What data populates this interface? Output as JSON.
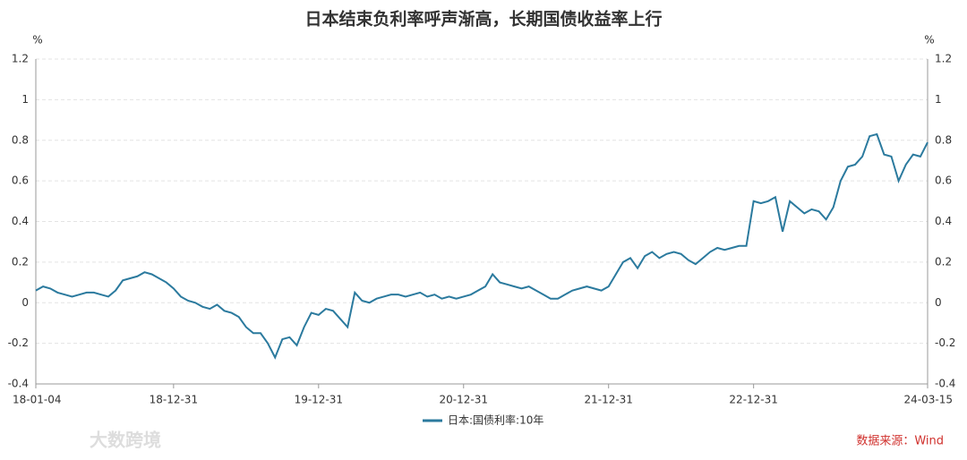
{
  "chart_data": {
    "type": "line",
    "title": "日本结束负利率呼声渐高，长期国债收益率上行",
    "y_unit": "%",
    "source": "数据来源：Wind",
    "watermark": "大数跨境",
    "categories": [
      "18-01-04",
      null,
      null,
      null,
      null,
      null,
      null,
      null,
      null,
      null,
      null,
      null,
      null,
      null,
      null,
      null,
      null,
      null,
      null,
      "18-12-31",
      null,
      null,
      null,
      null,
      null,
      null,
      null,
      null,
      null,
      null,
      null,
      null,
      null,
      null,
      null,
      null,
      null,
      null,
      null,
      "19-12-31",
      null,
      null,
      null,
      null,
      null,
      null,
      null,
      null,
      null,
      null,
      null,
      null,
      null,
      null,
      null,
      null,
      null,
      null,
      null,
      "20-12-31",
      null,
      null,
      null,
      null,
      null,
      null,
      null,
      null,
      null,
      null,
      null,
      null,
      null,
      null,
      null,
      null,
      null,
      null,
      null,
      "21-12-31",
      null,
      null,
      null,
      null,
      null,
      null,
      null,
      null,
      null,
      null,
      null,
      null,
      null,
      null,
      null,
      null,
      null,
      null,
      null,
      "22-12-31",
      null,
      null,
      null,
      null,
      null,
      null,
      null,
      null,
      null,
      null,
      null,
      null,
      null,
      null,
      null,
      null,
      null,
      null,
      null,
      null,
      null,
      null,
      null,
      "24-03-15"
    ],
    "series": [
      {
        "name": "日本:国债利率:10年",
        "color": "#2b7a9e",
        "values": [
          0.06,
          0.08,
          0.07,
          0.05,
          0.04,
          0.03,
          0.04,
          0.05,
          0.05,
          0.04,
          0.03,
          0.06,
          0.11,
          0.12,
          0.13,
          0.15,
          0.14,
          0.12,
          0.1,
          0.07,
          0.03,
          0.01,
          0.0,
          -0.02,
          -0.03,
          -0.01,
          -0.04,
          -0.05,
          -0.07,
          -0.12,
          -0.15,
          -0.15,
          -0.2,
          -0.27,
          -0.18,
          -0.17,
          -0.21,
          -0.12,
          -0.05,
          -0.06,
          -0.03,
          -0.04,
          -0.08,
          -0.12,
          0.05,
          0.01,
          0.0,
          0.02,
          0.03,
          0.04,
          0.04,
          0.03,
          0.04,
          0.05,
          0.03,
          0.04,
          0.02,
          0.03,
          0.02,
          0.03,
          0.04,
          0.06,
          0.08,
          0.14,
          0.1,
          0.09,
          0.08,
          0.07,
          0.08,
          0.06,
          0.04,
          0.02,
          0.02,
          0.04,
          0.06,
          0.07,
          0.08,
          0.07,
          0.06,
          0.08,
          0.14,
          0.2,
          0.22,
          0.17,
          0.23,
          0.25,
          0.22,
          0.24,
          0.25,
          0.24,
          0.21,
          0.19,
          0.22,
          0.25,
          0.27,
          0.26,
          0.27,
          0.28,
          0.28,
          0.5,
          0.49,
          0.5,
          0.52,
          0.35,
          0.5,
          0.47,
          0.44,
          0.46,
          0.45,
          0.41,
          0.47,
          0.6,
          0.67,
          0.68,
          0.72,
          0.82,
          0.83,
          0.73,
          0.72,
          0.6,
          0.68,
          0.73,
          0.72,
          0.79
        ]
      }
    ],
    "ylim": [
      -0.4,
      1.2
    ],
    "yticks": [
      -0.4,
      -0.2,
      0,
      0.2,
      0.4,
      0.6,
      0.8,
      1,
      1.2
    ],
    "grid": true
  }
}
